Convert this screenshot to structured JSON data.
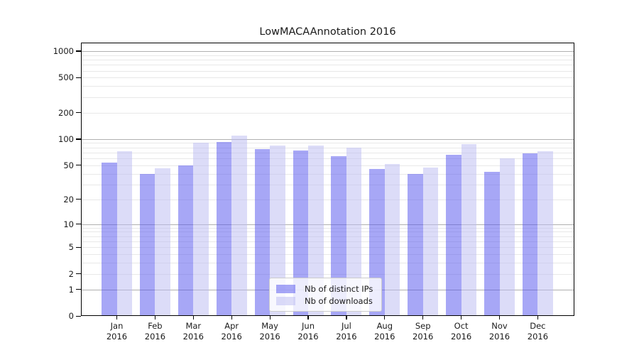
{
  "chart_data": {
    "type": "bar",
    "title": "LowMACAAnnotation 2016",
    "categories": [
      "Jan",
      "Feb",
      "Mar",
      "Apr",
      "May",
      "Jun",
      "Jul",
      "Aug",
      "Sep",
      "Oct",
      "Nov",
      "Dec"
    ],
    "x_year_label": "2016",
    "series": [
      {
        "name": "Nb of distinct IPs",
        "color": "rgba(80, 80, 238, 0.5)",
        "values": [
          54,
          40,
          50,
          92,
          77,
          74,
          63,
          45,
          40,
          66,
          42,
          68
        ]
      },
      {
        "name": "Nb of downloads",
        "color": "rgba(185, 185, 242, 0.5)",
        "values": [
          73,
          46,
          90,
          110,
          85,
          84,
          79,
          52,
          47,
          87,
          60,
          72
        ]
      }
    ],
    "xlabel": "",
    "ylabel": "",
    "yscale": "log1p",
    "ylim": [
      0,
      1280
    ],
    "yticks": [
      0,
      1,
      2,
      5,
      10,
      20,
      50,
      100,
      200,
      500,
      1000
    ],
    "major_grid_values": [
      1,
      10,
      100,
      1000
    ],
    "minor_grid_values": [
      2,
      3,
      4,
      5,
      6,
      7,
      8,
      9,
      20,
      30,
      40,
      50,
      60,
      70,
      80,
      90,
      200,
      300,
      400,
      500,
      600,
      700,
      800,
      900
    ],
    "grid": true,
    "legend_position": "lower center",
    "grid_major_color": "#b0b0b0",
    "grid_minor_color": "#e8e8e8"
  }
}
